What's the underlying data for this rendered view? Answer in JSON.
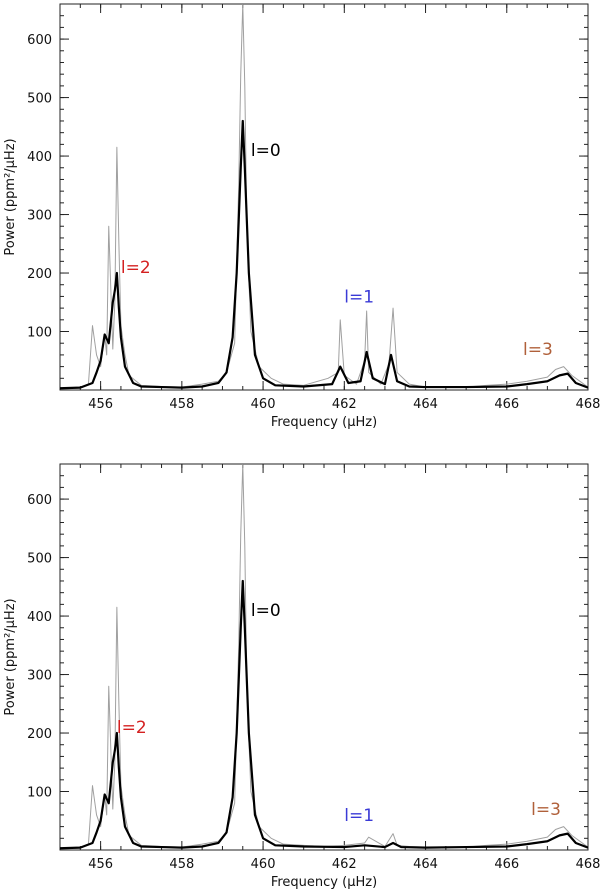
{
  "chart_data": [
    {
      "type": "line",
      "xlabel": "Frequency (μHz)",
      "ylabel": "Power (ppm²/μHz)",
      "xlim": [
        455,
        468
      ],
      "ylim": [
        0,
        660
      ],
      "x_ticks": [
        456,
        458,
        460,
        462,
        464,
        466,
        468
      ],
      "y_ticks": [
        100,
        200,
        300,
        400,
        500,
        600
      ],
      "colors": {
        "raw": "#a0a0a0",
        "smooth": "#000000"
      },
      "annotations": [
        {
          "text": "l=0",
          "x": 459.7,
          "y": 400,
          "color": "#000000"
        },
        {
          "text": "l=2",
          "x": 456.5,
          "y": 200,
          "color": "#d42020"
        },
        {
          "text": "l=1",
          "x": 462.0,
          "y": 150,
          "color": "#3a3ad6"
        },
        {
          "text": "l=3",
          "x": 466.4,
          "y": 60,
          "color": "#b0603a"
        }
      ],
      "series": [
        {
          "style": "raw",
          "x": [
            455.0,
            455.5,
            455.7,
            455.8,
            455.9,
            456.0,
            456.1,
            456.15,
            456.2,
            456.3,
            456.35,
            456.4,
            456.45,
            456.5,
            456.6,
            456.7,
            457.0,
            457.5,
            458.0,
            458.5,
            458.9,
            459.1,
            459.3,
            459.4,
            459.45,
            459.5,
            459.55,
            459.6,
            459.7,
            459.9,
            460.2,
            460.5,
            461.0,
            461.6,
            461.85,
            461.9,
            462.0,
            462.3,
            462.5,
            462.55,
            462.6,
            462.9,
            463.1,
            463.2,
            463.3,
            463.6,
            464.0,
            464.5,
            465.0,
            465.5,
            466.0,
            466.5,
            467.0,
            467.2,
            467.4,
            467.6,
            468.0
          ],
          "values": [
            3,
            5,
            10,
            110,
            60,
            40,
            95,
            60,
            280,
            70,
            150,
            415,
            250,
            110,
            60,
            25,
            8,
            6,
            5,
            10,
            15,
            30,
            80,
            350,
            540,
            660,
            520,
            280,
            100,
            40,
            20,
            10,
            8,
            20,
            30,
            120,
            25,
            10,
            50,
            135,
            30,
            10,
            45,
            140,
            30,
            10,
            5,
            5,
            5,
            8,
            10,
            15,
            22,
            35,
            40,
            25,
            5
          ]
        },
        {
          "style": "smooth",
          "x": [
            455.0,
            455.5,
            455.8,
            455.9,
            456.0,
            456.1,
            456.2,
            456.3,
            456.35,
            456.4,
            456.45,
            456.5,
            456.6,
            456.8,
            457.0,
            457.5,
            458.0,
            458.5,
            458.9,
            459.1,
            459.25,
            459.35,
            459.45,
            459.5,
            459.55,
            459.65,
            459.8,
            460.0,
            460.3,
            461.0,
            461.7,
            461.9,
            462.1,
            462.4,
            462.55,
            462.7,
            463.0,
            463.15,
            463.3,
            463.6,
            464.0,
            465.0,
            466.0,
            466.5,
            467.0,
            467.3,
            467.5,
            467.7,
            468.0
          ],
          "values": [
            3,
            4,
            12,
            30,
            50,
            95,
            80,
            150,
            170,
            200,
            140,
            90,
            40,
            12,
            6,
            5,
            4,
            6,
            12,
            30,
            90,
            200,
            380,
            460,
            380,
            200,
            60,
            20,
            8,
            6,
            10,
            40,
            12,
            15,
            65,
            20,
            10,
            60,
            15,
            6,
            5,
            5,
            6,
            10,
            15,
            25,
            28,
            12,
            4
          ]
        }
      ]
    },
    {
      "type": "line",
      "xlabel": "Frequency (μHz)",
      "ylabel": "Power (ppm²/μHz)",
      "xlim": [
        455,
        468
      ],
      "ylim": [
        0,
        660
      ],
      "x_ticks": [
        456,
        458,
        460,
        462,
        464,
        466,
        468
      ],
      "y_ticks": [
        100,
        200,
        300,
        400,
        500,
        600
      ],
      "colors": {
        "raw": "#a0a0a0",
        "smooth": "#000000"
      },
      "annotations": [
        {
          "text": "l=0",
          "x": 459.7,
          "y": 400,
          "color": "#000000"
        },
        {
          "text": "l=2",
          "x": 456.4,
          "y": 200,
          "color": "#d42020"
        },
        {
          "text": "l=1",
          "x": 462.0,
          "y": 50,
          "color": "#3a3ad6"
        },
        {
          "text": "l=3",
          "x": 466.6,
          "y": 60,
          "color": "#b0603a"
        }
      ],
      "series": [
        {
          "style": "raw",
          "x": [
            455.0,
            455.5,
            455.7,
            455.8,
            455.9,
            456.0,
            456.1,
            456.15,
            456.2,
            456.3,
            456.35,
            456.4,
            456.45,
            456.5,
            456.6,
            456.7,
            457.0,
            457.5,
            458.0,
            458.5,
            458.9,
            459.1,
            459.3,
            459.4,
            459.45,
            459.5,
            459.55,
            459.6,
            459.7,
            459.9,
            460.2,
            460.5,
            461.0,
            461.5,
            462.0,
            462.5,
            462.6,
            463.0,
            463.2,
            463.3,
            463.6,
            464.0,
            464.5,
            465.0,
            465.5,
            466.0,
            466.5,
            467.0,
            467.2,
            467.4,
            467.6,
            468.0
          ],
          "values": [
            3,
            5,
            10,
            110,
            60,
            40,
            95,
            60,
            280,
            70,
            150,
            415,
            250,
            110,
            60,
            25,
            8,
            6,
            5,
            10,
            15,
            30,
            80,
            350,
            540,
            660,
            520,
            280,
            100,
            40,
            20,
            10,
            8,
            6,
            8,
            12,
            22,
            6,
            28,
            8,
            6,
            5,
            5,
            5,
            8,
            10,
            15,
            22,
            35,
            40,
            25,
            5
          ]
        },
        {
          "style": "smooth",
          "x": [
            455.0,
            455.5,
            455.8,
            455.9,
            456.0,
            456.1,
            456.2,
            456.3,
            456.35,
            456.4,
            456.45,
            456.5,
            456.6,
            456.8,
            457.0,
            457.5,
            458.0,
            458.5,
            458.9,
            459.1,
            459.25,
            459.35,
            459.45,
            459.5,
            459.55,
            459.65,
            459.8,
            460.0,
            460.3,
            461.0,
            462.0,
            462.5,
            463.0,
            463.2,
            463.4,
            464.0,
            465.0,
            466.0,
            466.5,
            467.0,
            467.3,
            467.5,
            467.7,
            468.0
          ],
          "values": [
            3,
            4,
            12,
            30,
            50,
            95,
            80,
            150,
            170,
            200,
            140,
            90,
            40,
            12,
            6,
            5,
            4,
            6,
            12,
            30,
            90,
            200,
            380,
            460,
            380,
            200,
            60,
            20,
            8,
            6,
            5,
            8,
            5,
            12,
            5,
            4,
            5,
            6,
            10,
            15,
            25,
            28,
            12,
            4
          ]
        }
      ]
    }
  ]
}
